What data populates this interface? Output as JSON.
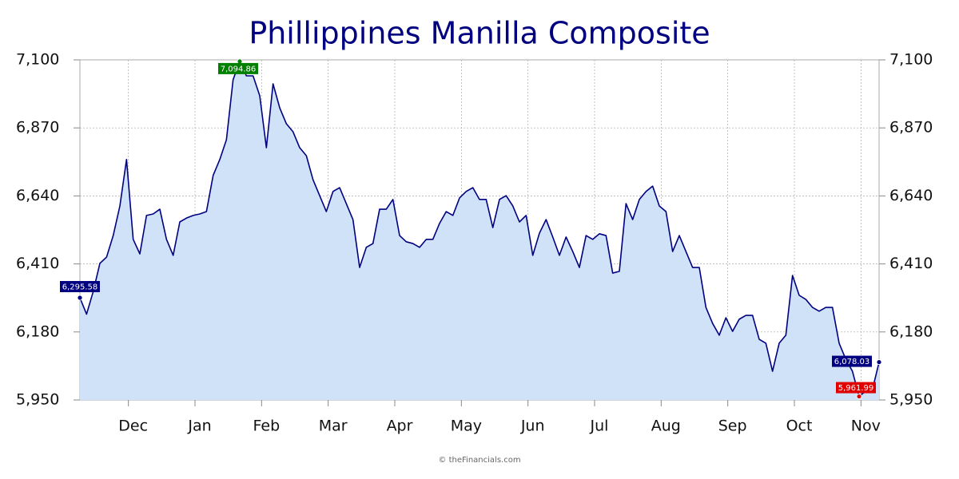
{
  "chart_data": {
    "type": "area",
    "title": "Phillippines Manilla Composite",
    "footer": "© theFinancials.com",
    "color": "#000080",
    "fill": "#cfe2f7",
    "grid": true,
    "categories": [
      null,
      null,
      null,
      null,
      null,
      null,
      null,
      null,
      "Dec",
      null,
      null,
      null,
      null,
      null,
      null,
      null,
      null,
      null,
      "Jan",
      null,
      null,
      null,
      null,
      null,
      null,
      null,
      null,
      null,
      "Feb",
      null,
      null,
      null,
      null,
      null,
      null,
      null,
      null,
      null,
      "Mar",
      null,
      null,
      null,
      null,
      null,
      null,
      null,
      null,
      null,
      "Apr",
      null,
      null,
      null,
      null,
      null,
      null,
      null,
      null,
      null,
      "May",
      null,
      null,
      null,
      null,
      null,
      null,
      null,
      null,
      null,
      "Jun",
      null,
      null,
      null,
      null,
      null,
      null,
      null,
      null,
      null,
      "Jul",
      null,
      null,
      null,
      null,
      null,
      null,
      null,
      null,
      null,
      "Aug",
      null,
      null,
      null,
      null,
      null,
      null,
      null,
      null,
      null,
      "Sep",
      null,
      null,
      null,
      null,
      null,
      null,
      null,
      null,
      null,
      "Oct",
      null,
      null,
      null,
      null,
      null,
      null,
      null,
      null,
      null,
      "Nov",
      null,
      null
    ],
    "values": [
      6295.58,
      6240,
      6317,
      6412,
      6433,
      6506,
      6606,
      6763,
      6493,
      6444,
      6574,
      6579,
      6595,
      6493,
      6439,
      6552,
      6565,
      6574,
      6579,
      6587,
      6709,
      6763,
      6830,
      7033,
      7094.86,
      7046,
      7046,
      6979,
      6803,
      7019,
      6938,
      6884,
      6857,
      6803,
      6776,
      6695,
      6641,
      6587,
      6655,
      6668,
      6614,
      6560,
      6398,
      6466,
      6479,
      6595,
      6595,
      6628,
      6506,
      6485,
      6479,
      6466,
      6493,
      6493,
      6547,
      6587,
      6574,
      6633,
      6655,
      6668,
      6628,
      6628,
      6533,
      6628,
      6641,
      6606,
      6552,
      6574,
      6439,
      6514,
      6560,
      6501,
      6439,
      6501,
      6452,
      6398,
      6506,
      6493,
      6512,
      6506,
      6379,
      6385,
      6614,
      6560,
      6628,
      6655,
      6673,
      6606,
      6587,
      6452,
      6506,
      6452,
      6398,
      6398,
      6263,
      6209,
      6169,
      6228,
      6182,
      6223,
      6236,
      6236,
      6155,
      6142,
      6047,
      6142,
      6169,
      6371,
      6304,
      6290,
      6263,
      6250,
      6263,
      6263,
      6142,
      6088,
      6047,
      5961.99,
      5980,
      5985,
      6078.03
    ],
    "annotations": [
      {
        "value": 6295.58,
        "label": "6,295.58",
        "color": "#000080"
      },
      {
        "value": 7094.86,
        "label": "7,094.86",
        "color": "#008000"
      },
      {
        "value": 5961.99,
        "label": "5,961.99",
        "color": "#e00000"
      },
      {
        "value": 6078.03,
        "label": "6,078.03",
        "color": "#000080"
      }
    ],
    "ylim": [
      5950,
      7100
    ],
    "yticks": [
      {
        "value": 5950,
        "label": "5,950"
      },
      {
        "value": 6180,
        "label": "6,180"
      },
      {
        "value": 6410,
        "label": "6,410"
      },
      {
        "value": 6640,
        "label": "6,640"
      },
      {
        "value": 6870,
        "label": "6,870"
      },
      {
        "value": 7100,
        "label": "7,100"
      }
    ],
    "y2lim": [
      5950,
      7100
    ],
    "y2ticks": [
      {
        "value": 5950,
        "label": "5,950"
      },
      {
        "value": 6180,
        "label": "6,180"
      },
      {
        "value": 6410,
        "label": "6,410"
      },
      {
        "value": 6640,
        "label": "6,640"
      },
      {
        "value": 6870,
        "label": "6,870"
      },
      {
        "value": 7100,
        "label": "7,100"
      }
    ]
  }
}
